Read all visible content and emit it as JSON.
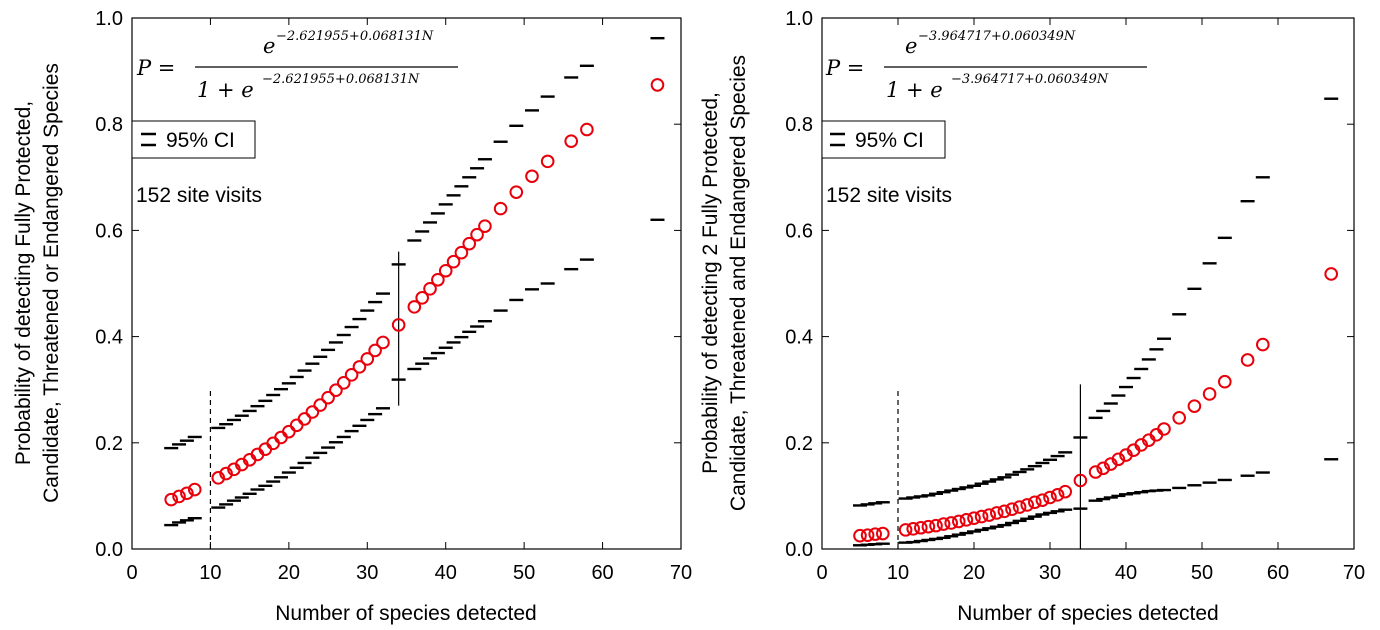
{
  "chart_data": [
    {
      "type": "scatter",
      "xlabel": "Number of species detected",
      "ylabel_line1": "Probability of detecting Fully Protected,",
      "ylabel_line2": "Candidate, Threatened or Endangered Species",
      "xlim": [
        0,
        70
      ],
      "ylim": [
        0.0,
        1.0
      ],
      "xticks": [
        "0",
        "10",
        "20",
        "30",
        "40",
        "50",
        "60",
        "70"
      ],
      "yticks": [
        "0.0",
        "0.2",
        "0.4",
        "0.6",
        "0.8",
        "1.0"
      ],
      "formula": {
        "lhs": "P =",
        "numerator_base": "e",
        "numerator_exponent": "−2.621955+0.068131N",
        "denominator_prefix": "1 + e",
        "denominator_exponent": "−2.621955+0.068131N"
      },
      "legend_label": "95% CI",
      "annotation": "152 site visits",
      "dashed_line_x": 10,
      "dashed_line_yrange": [
        0.0,
        0.3
      ],
      "solid_line_x": 34,
      "solid_line_yrange": [
        0.27,
        0.56
      ],
      "marker_color": "#e8000b",
      "ci_color": "#000000",
      "x": [
        5,
        6,
        7,
        8,
        11,
        12,
        13,
        14,
        15,
        16,
        17,
        18,
        19,
        20,
        21,
        22,
        23,
        24,
        25,
        26,
        27,
        28,
        29,
        30,
        31,
        32,
        34,
        36,
        37,
        38,
        39,
        40,
        41,
        42,
        43,
        44,
        45,
        47,
        49,
        51,
        53,
        56,
        58,
        67
      ],
      "probability": [
        0.093,
        0.099,
        0.105,
        0.112,
        0.134,
        0.142,
        0.15,
        0.159,
        0.168,
        0.178,
        0.188,
        0.199,
        0.21,
        0.221,
        0.233,
        0.245,
        0.258,
        0.271,
        0.285,
        0.299,
        0.313,
        0.328,
        0.343,
        0.358,
        0.374,
        0.389,
        0.422,
        0.456,
        0.473,
        0.49,
        0.507,
        0.524,
        0.541,
        0.558,
        0.575,
        0.592,
        0.608,
        0.641,
        0.672,
        0.702,
        0.73,
        0.768,
        0.79,
        0.874
      ],
      "ci_lower": [
        0.045,
        0.05,
        0.054,
        0.058,
        0.078,
        0.084,
        0.091,
        0.097,
        0.104,
        0.112,
        0.119,
        0.127,
        0.135,
        0.144,
        0.153,
        0.162,
        0.172,
        0.181,
        0.191,
        0.201,
        0.211,
        0.222,
        0.232,
        0.243,
        0.254,
        0.265,
        0.319,
        0.339,
        0.349,
        0.359,
        0.369,
        0.379,
        0.389,
        0.399,
        0.409,
        0.419,
        0.429,
        0.449,
        0.469,
        0.489,
        0.5,
        0.527,
        0.545,
        0.62
      ],
      "ci_upper": [
        0.19,
        0.197,
        0.204,
        0.211,
        0.228,
        0.235,
        0.243,
        0.251,
        0.26,
        0.269,
        0.279,
        0.29,
        0.301,
        0.312,
        0.324,
        0.336,
        0.349,
        0.362,
        0.375,
        0.389,
        0.403,
        0.418,
        0.433,
        0.449,
        0.465,
        0.481,
        0.536,
        0.581,
        0.598,
        0.615,
        0.632,
        0.649,
        0.666,
        0.683,
        0.7,
        0.717,
        0.734,
        0.767,
        0.797,
        0.826,
        0.852,
        0.888,
        0.91,
        0.962
      ]
    },
    {
      "type": "scatter",
      "xlabel": "Number of species detected",
      "ylabel_line1": "Probability of detecting 2 Fully Protected,",
      "ylabel_line2": "Candidate, Threatened and Endangered Species",
      "xlim": [
        0,
        70
      ],
      "ylim": [
        0.0,
        1.0
      ],
      "xticks": [
        "0",
        "10",
        "20",
        "30",
        "40",
        "50",
        "60",
        "70"
      ],
      "yticks": [
        "0.0",
        "0.2",
        "0.4",
        "0.6",
        "0.8",
        "1.0"
      ],
      "formula": {
        "lhs": "P =",
        "numerator_base": "e",
        "numerator_exponent": "−3.964717+0.060349N",
        "denominator_prefix": "1 + e",
        "denominator_exponent": "−3.964717+0.060349N"
      },
      "legend_label": "95% CI",
      "annotation": "152 site visits",
      "dashed_line_x": 10,
      "dashed_line_yrange": [
        0.0,
        0.3
      ],
      "solid_line_x": 34,
      "solid_line_yrange": [
        0.0,
        0.31
      ],
      "marker_color": "#e8000b",
      "ci_color": "#000000",
      "x": [
        5,
        6,
        7,
        8,
        11,
        12,
        13,
        14,
        15,
        16,
        17,
        18,
        19,
        20,
        21,
        22,
        23,
        24,
        25,
        26,
        27,
        28,
        29,
        30,
        31,
        32,
        34,
        36,
        37,
        38,
        39,
        40,
        41,
        42,
        43,
        44,
        45,
        47,
        49,
        51,
        53,
        56,
        58,
        67
      ],
      "probability": [
        0.025,
        0.026,
        0.028,
        0.029,
        0.036,
        0.038,
        0.04,
        0.042,
        0.044,
        0.047,
        0.049,
        0.052,
        0.055,
        0.058,
        0.061,
        0.064,
        0.068,
        0.071,
        0.075,
        0.079,
        0.083,
        0.088,
        0.092,
        0.097,
        0.102,
        0.108,
        0.129,
        0.145,
        0.152,
        0.16,
        0.169,
        0.177,
        0.186,
        0.196,
        0.205,
        0.215,
        0.226,
        0.247,
        0.269,
        0.292,
        0.315,
        0.356,
        0.385,
        0.518
      ],
      "ci_lower": [
        0.007,
        0.008,
        0.009,
        0.01,
        0.012,
        0.013,
        0.015,
        0.017,
        0.019,
        0.021,
        0.024,
        0.027,
        0.03,
        0.033,
        0.036,
        0.039,
        0.042,
        0.045,
        0.049,
        0.053,
        0.057,
        0.061,
        0.065,
        0.068,
        0.071,
        0.074,
        0.076,
        0.091,
        0.094,
        0.097,
        0.1,
        0.103,
        0.105,
        0.107,
        0.109,
        0.11,
        0.111,
        0.115,
        0.12,
        0.125,
        0.13,
        0.138,
        0.144,
        0.169
      ],
      "ci_upper": [
        0.082,
        0.084,
        0.086,
        0.088,
        0.095,
        0.097,
        0.099,
        0.101,
        0.104,
        0.107,
        0.11,
        0.113,
        0.116,
        0.119,
        0.123,
        0.127,
        0.131,
        0.135,
        0.14,
        0.145,
        0.15,
        0.156,
        0.162,
        0.168,
        0.175,
        0.182,
        0.21,
        0.247,
        0.26,
        0.274,
        0.289,
        0.305,
        0.322,
        0.339,
        0.357,
        0.376,
        0.396,
        0.442,
        0.49,
        0.538,
        0.586,
        0.655,
        0.7,
        0.848
      ]
    }
  ]
}
